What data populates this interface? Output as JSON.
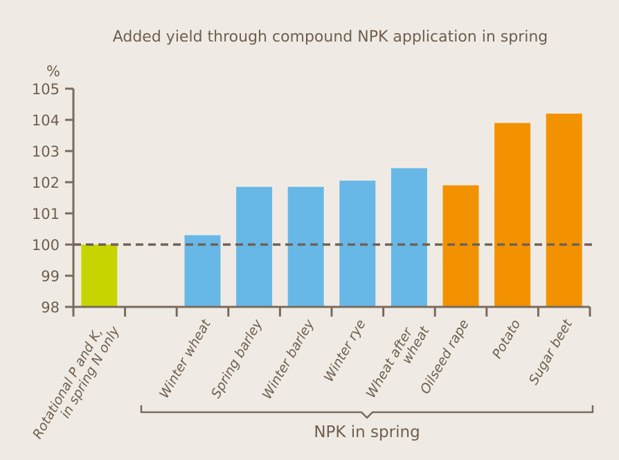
{
  "chart_data": {
    "type": "bar",
    "title": "Added yield through compound NPK application in spring",
    "ylabel": "%",
    "xlabel": "",
    "ylim": [
      98,
      105
    ],
    "yticks": [
      98,
      99,
      100,
      101,
      102,
      103,
      104,
      105
    ],
    "reference_line": 100,
    "grid": false,
    "categories": [
      "Rotational P and K, in spring N only",
      "",
      "Winter wheat",
      "Spring barley",
      "Winter barley",
      "Winter rye",
      "Wheat after wheat",
      "Oilseed rape",
      "Potato",
      "Sugar beet"
    ],
    "category_lines": [
      [
        "Rotational P and K,",
        "in spring N only"
      ],
      [],
      [
        "Winter wheat"
      ],
      [
        "Spring barley"
      ],
      [
        "Winter barley"
      ],
      [
        "Winter rye"
      ],
      [
        "Wheat after",
        "wheat"
      ],
      [
        "Oilseed rape"
      ],
      [
        "Potato"
      ],
      [
        "Sugar beet"
      ]
    ],
    "values": [
      100,
      null,
      100.3,
      101.85,
      101.85,
      102.05,
      102.45,
      101.9,
      103.9,
      104.2
    ],
    "colors": [
      "#c8d400",
      null,
      "#67b8e7",
      "#67b8e7",
      "#67b8e7",
      "#67b8e7",
      "#67b8e7",
      "#f39200",
      "#f39200",
      "#f39200"
    ],
    "group": {
      "label": "NPK in spring",
      "from": 2,
      "to": 9
    },
    "axis_color": "#7a6a5c",
    "reference_color": "#6f6256"
  }
}
